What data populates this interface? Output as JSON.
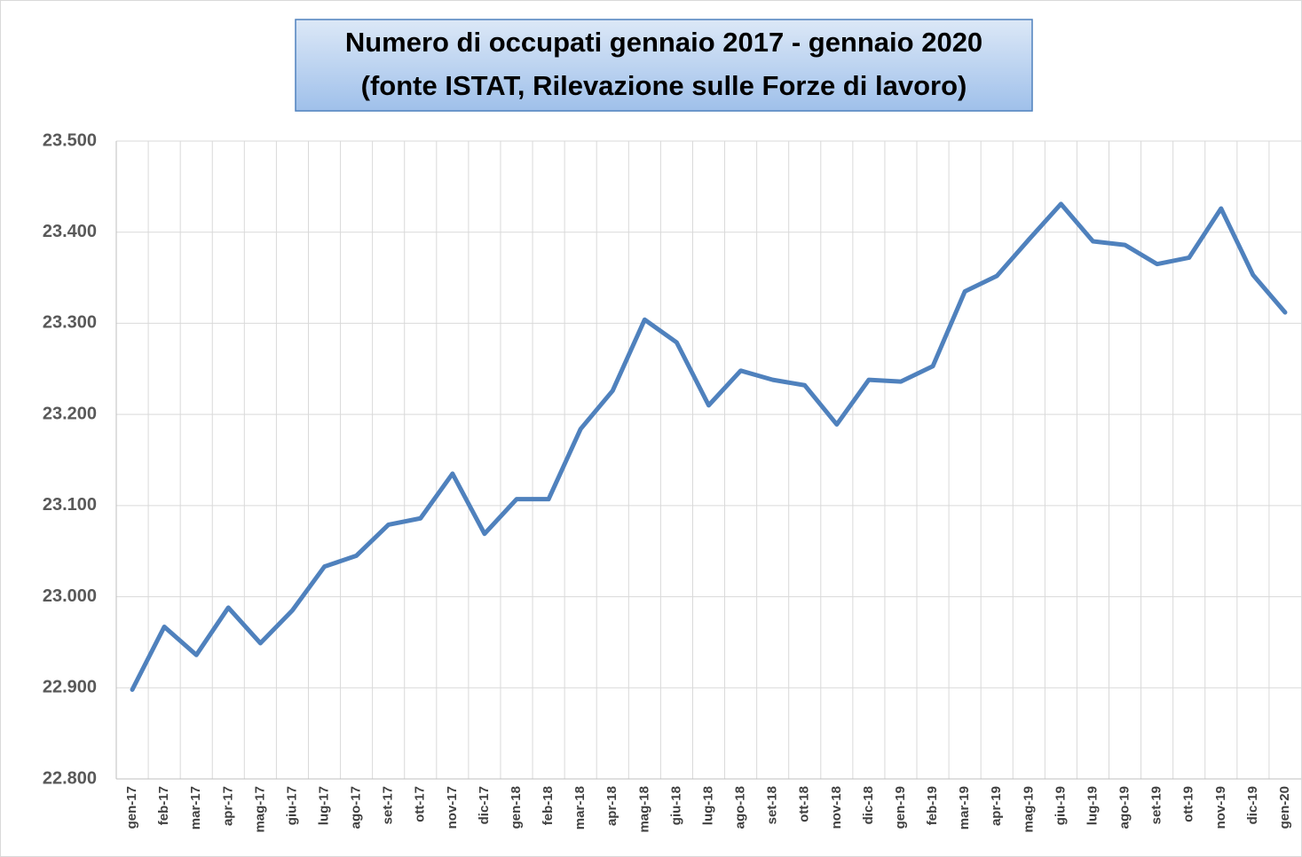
{
  "chart_data": {
    "type": "line",
    "title": "Numero di occupati gennaio 2017 - gennaio 2020",
    "subtitle": "(fonte ISTAT, Rilevazione sulle Forze di lavoro)",
    "categories": [
      "gen-17",
      "feb-17",
      "mar-17",
      "apr-17",
      "mag-17",
      "giu-17",
      "lug-17",
      "ago-17",
      "set-17",
      "ott-17",
      "nov-17",
      "dic-17",
      "gen-18",
      "feb-18",
      "mar-18",
      "apr-18",
      "mag-18",
      "giu-18",
      "lug-18",
      "ago-18",
      "set-18",
      "ott-18",
      "nov-18",
      "dic-18",
      "gen-19",
      "feb-19",
      "mar-19",
      "apr-19",
      "mag-19",
      "giu-19",
      "lug-19",
      "ago-19",
      "set-19",
      "ott-19",
      "nov-19",
      "dic-19",
      "gen-20"
    ],
    "series": [
      {
        "name": "Occupati",
        "color": "#4f81bd",
        "values": [
          22898,
          22967,
          22936,
          22988,
          22949,
          22985,
          23033,
          23045,
          23079,
          23086,
          23135,
          23069,
          23107,
          23107,
          23184,
          23226,
          23304,
          23279,
          23210,
          23248,
          23238,
          23232,
          23189,
          23238,
          23236,
          23253,
          23335,
          23352,
          23392,
          23431,
          23390,
          23386,
          23365,
          23372,
          23426,
          23353,
          23312
        ]
      }
    ],
    "ylim": [
      22800,
      23500
    ],
    "yticks": [
      {
        "value": 22800,
        "label": "22.800"
      },
      {
        "value": 22900,
        "label": "22.900"
      },
      {
        "value": 23000,
        "label": "23.000"
      },
      {
        "value": 23100,
        "label": "23.100"
      },
      {
        "value": 23200,
        "label": "23.200"
      },
      {
        "value": 23300,
        "label": "23.300"
      },
      {
        "value": 23400,
        "label": "23.400"
      },
      {
        "value": 23500,
        "label": "23.500"
      }
    ],
    "grid": true
  }
}
